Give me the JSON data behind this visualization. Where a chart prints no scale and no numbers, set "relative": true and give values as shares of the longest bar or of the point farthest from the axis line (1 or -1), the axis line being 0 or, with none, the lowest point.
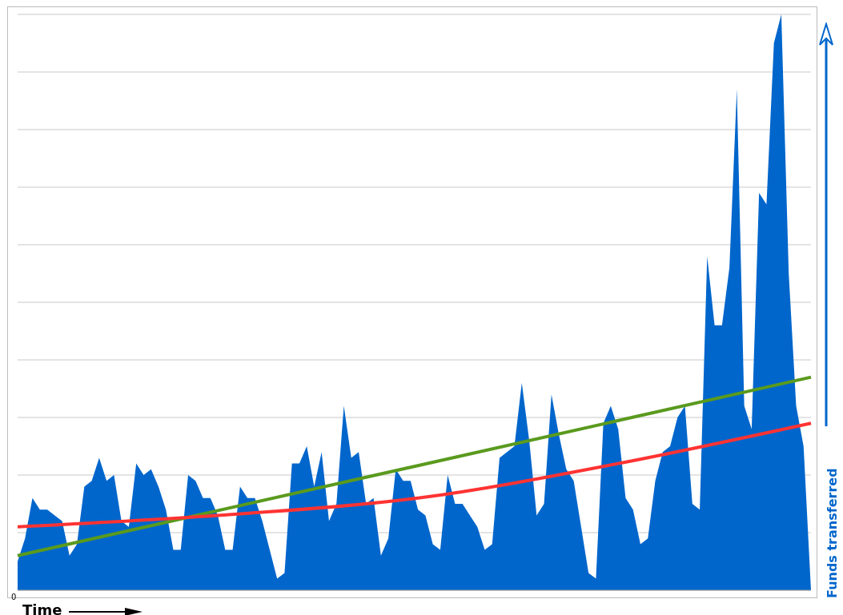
{
  "chart_data": {
    "type": "area",
    "relative": true,
    "xlabel": "Time",
    "ylabel": "Funds transferred",
    "grid": "y",
    "legend": false,
    "annotations": [
      "0"
    ],
    "categories": [
      null,
      null,
      null,
      null,
      null,
      null,
      null,
      null,
      null,
      null,
      null,
      null,
      null,
      null,
      null,
      null,
      null,
      null,
      null,
      null,
      null,
      null,
      null,
      null,
      null,
      null,
      null,
      null,
      null,
      null,
      null,
      null,
      null,
      null,
      null,
      null,
      null,
      null,
      null,
      null,
      null,
      null,
      null,
      null,
      null,
      null,
      null,
      null,
      null,
      null,
      null,
      null,
      null,
      null,
      null,
      null,
      null,
      null,
      null,
      null,
      null,
      null,
      null,
      null,
      null,
      null,
      null,
      null,
      null,
      null,
      null,
      null,
      null,
      null,
      null,
      null,
      null,
      null,
      null,
      null,
      null,
      null,
      null,
      null,
      null,
      null,
      null,
      null,
      null,
      null,
      null,
      null,
      null,
      null,
      null,
      null,
      null,
      null,
      null,
      null,
      null,
      null,
      null,
      null,
      null,
      null,
      null,
      null
    ],
    "series": [
      {
        "color": "#0066cc",
        "values": [
          0.05,
          0.09,
          0.16,
          0.14,
          0.14,
          0.13,
          0.12,
          0.06,
          0.08,
          0.18,
          0.19,
          0.23,
          0.19,
          0.2,
          0.12,
          0.11,
          0.22,
          0.2,
          0.21,
          0.18,
          0.14,
          0.07,
          0.07,
          0.2,
          0.19,
          0.16,
          0.16,
          0.13,
          0.07,
          0.07,
          0.18,
          0.16,
          0.16,
          0.12,
          0.07,
          0.02,
          0.03,
          0.22,
          0.22,
          0.25,
          0.18,
          0.24,
          0.12,
          0.15,
          0.32,
          0.23,
          0.24,
          0.15,
          0.16,
          0.06,
          0.09,
          0.21,
          0.19,
          0.19,
          0.14,
          0.13,
          0.08,
          0.07,
          0.2,
          0.15,
          0.15,
          0.13,
          0.11,
          0.07,
          0.08,
          0.23,
          0.24,
          0.25,
          0.36,
          0.26,
          0.13,
          0.15,
          0.34,
          0.27,
          0.21,
          0.19,
          0.11,
          0.03,
          0.02,
          0.29,
          0.32,
          0.28,
          0.16,
          0.14,
          0.08,
          0.09,
          0.19,
          0.24,
          0.25,
          0.3,
          0.32,
          0.15,
          0.14,
          0.58,
          0.46,
          0.46,
          0.56,
          0.87,
          0.32,
          0.28,
          0.69,
          0.67,
          0.95,
          1,
          0.55,
          0.32,
          0.25,
          0
        ]
      },
      {
        "type": "line",
        "color": "#5a9a1e",
        "values": [
          0.06,
          null,
          null,
          null,
          null,
          null,
          null,
          null,
          null,
          null,
          null,
          null,
          null,
          null,
          null,
          null,
          null,
          null,
          null,
          null,
          null,
          null,
          null,
          null,
          null,
          null,
          null,
          null,
          null,
          null,
          null,
          null,
          null,
          null,
          null,
          null,
          null,
          null,
          null,
          null,
          null,
          null,
          null,
          null,
          null,
          null,
          null,
          null,
          null,
          null,
          null,
          null,
          null,
          null,
          null,
          null,
          null,
          null,
          null,
          null,
          null,
          null,
          null,
          null,
          null,
          null,
          null,
          null,
          null,
          null,
          null,
          null,
          null,
          null,
          null,
          null,
          null,
          null,
          null,
          null,
          null,
          null,
          null,
          null,
          null,
          null,
          null,
          null,
          null,
          null,
          null,
          null,
          null,
          null,
          null,
          null,
          null,
          null,
          null,
          null,
          null,
          null,
          null,
          null,
          null,
          null,
          null,
          0.37
        ]
      },
      {
        "type": "line",
        "color": "#ff3333",
        "values": [
          0.11,
          null,
          null,
          null,
          null,
          null,
          null,
          null,
          null,
          null,
          null,
          null,
          null,
          null,
          null,
          null,
          null,
          null,
          null,
          null,
          null,
          null,
          null,
          null,
          null,
          null,
          null,
          0.13,
          null,
          null,
          null,
          null,
          null,
          null,
          null,
          null,
          null,
          null,
          null,
          null,
          null,
          null,
          null,
          null,
          null,
          null,
          null,
          null,
          null,
          null,
          null,
          null,
          null,
          null,
          0.16,
          null,
          null,
          null,
          null,
          null,
          null,
          null,
          null,
          null,
          null,
          null,
          null,
          null,
          null,
          null,
          null,
          null,
          null,
          null,
          null,
          null,
          null,
          null,
          null,
          null,
          null,
          0.22,
          null,
          null,
          null,
          null,
          null,
          null,
          null,
          null,
          null,
          null,
          null,
          null,
          null,
          null,
          null,
          null,
          null,
          null,
          null,
          null,
          null,
          null,
          null,
          null,
          null,
          0.29
        ]
      }
    ]
  }
}
